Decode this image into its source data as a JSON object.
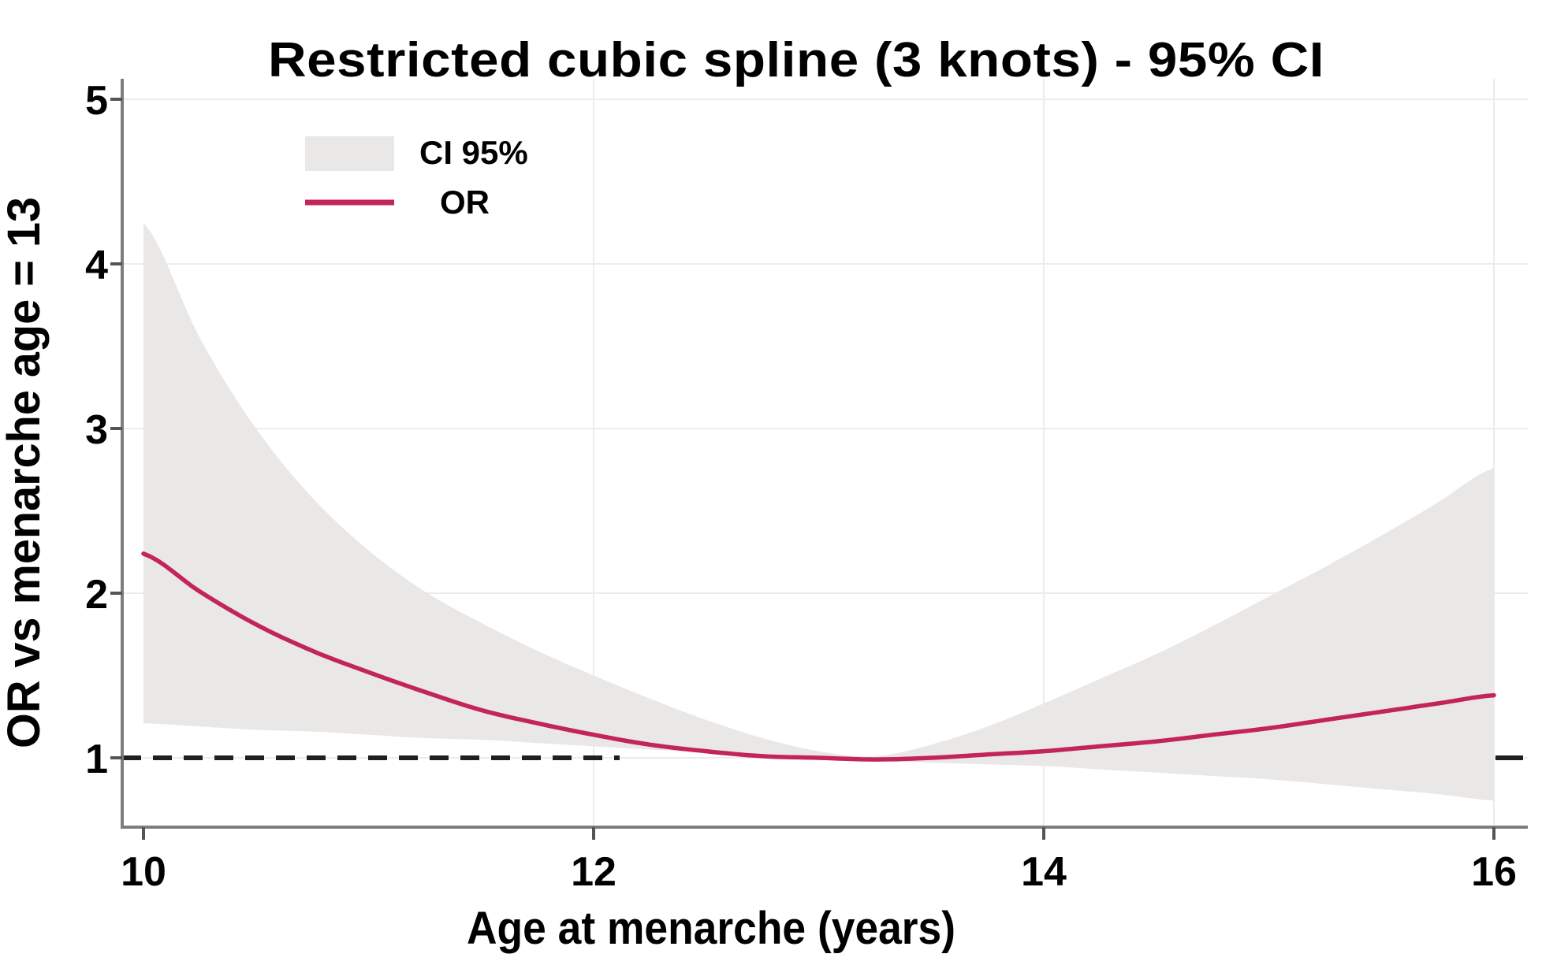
{
  "figure": {
    "title": "Restricted cubic spline (3 knots) - 95% CI",
    "x_axis_label": "Age at menarche (years)",
    "y_axis_label": "OR vs menarche age = 13",
    "legend": {
      "ci_label": "CI 95%",
      "or_label": "OR"
    }
  },
  "chart_data": {
    "type": "line",
    "title": "Restricted cubic spline (3 knots) - 95% CI",
    "xlabel": "Age at menarche (years)",
    "ylabel": "OR vs menarche age = 13",
    "x_ticks": [
      10,
      12,
      14,
      16
    ],
    "y_ticks": [
      1,
      2,
      3,
      4,
      5
    ],
    "xlim": [
      10,
      16
    ],
    "ylim": [
      0.47,
      5.1
    ],
    "grid": true,
    "legend_position": "top-left-inside",
    "reference_line_y": 1.0,
    "colors": {
      "or_line": "#c3245a",
      "ci_band": "#e9e8e6",
      "reference_dash": "#1f1f1f",
      "axis": "#7d7d7d",
      "grid": "#ececea",
      "text": "#000000"
    },
    "x": [
      10,
      10.25,
      10.5,
      10.75,
      11,
      11.25,
      11.5,
      11.75,
      12,
      12.25,
      12.5,
      12.75,
      13,
      13.25,
      13.5,
      13.75,
      14,
      14.25,
      14.5,
      14.75,
      15,
      15.25,
      15.5,
      15.75,
      16
    ],
    "series": [
      {
        "name": "OR",
        "type": "line",
        "values": [
          2.24,
          2.01,
          1.81,
          1.65,
          1.52,
          1.4,
          1.29,
          1.21,
          1.14,
          1.08,
          1.04,
          1.01,
          1.0,
          0.99,
          1.0,
          1.02,
          1.04,
          1.07,
          1.1,
          1.14,
          1.18,
          1.23,
          1.28,
          1.33,
          1.38
        ]
      },
      {
        "name": "CI 95% upper",
        "type": "band-upper",
        "values": [
          4.25,
          3.55,
          3.0,
          2.58,
          2.26,
          2.01,
          1.82,
          1.65,
          1.5,
          1.36,
          1.23,
          1.12,
          1.04,
          1.01,
          1.08,
          1.19,
          1.33,
          1.48,
          1.63,
          1.8,
          1.98,
          2.16,
          2.35,
          2.55,
          2.76
        ]
      },
      {
        "name": "CI 95% lower",
        "type": "band-lower",
        "values": [
          1.21,
          1.19,
          1.17,
          1.16,
          1.14,
          1.12,
          1.11,
          1.09,
          1.07,
          1.05,
          1.03,
          1.01,
          0.99,
          0.98,
          0.97,
          0.96,
          0.95,
          0.93,
          0.91,
          0.89,
          0.87,
          0.84,
          0.81,
          0.78,
          0.74
        ]
      }
    ]
  }
}
